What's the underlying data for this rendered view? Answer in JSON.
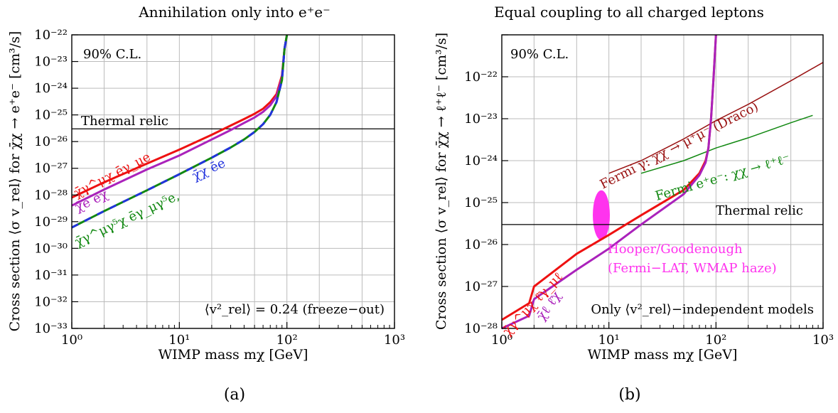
{
  "chart_data": [
    {
      "type": "line",
      "panel": "(a)",
      "title": "Annihilation only into e⁺e⁻",
      "xlabel": "WIMP mass mχ [GeV]",
      "ylabel": "Cross section ⟨σ v_rel⟩ for χ̄χ → e⁺e⁻ [cm³/s]",
      "x_scale": "log",
      "y_scale": "log",
      "xlim": [
        1,
        1000
      ],
      "ylim": [
        1e-33,
        1e-22
      ],
      "x_ticks": [
        "10⁰",
        "10¹",
        "10²",
        "10³"
      ],
      "y_ticks": [
        "10⁻³³",
        "10⁻³²",
        "10⁻³¹",
        "10⁻³⁰",
        "10⁻²⁹",
        "10⁻²⁸",
        "10⁻²⁷",
        "10⁻²⁶",
        "10⁻²⁵",
        "10⁻²⁴",
        "10⁻²³",
        "10⁻²²"
      ],
      "grid": true,
      "corner_label": "90% C.L.",
      "footnote": "⟨v²_rel⟩ = 0.24 (freeze−out)",
      "reference_line": {
        "label": "Thermal relic",
        "y": 3e-26
      },
      "series": [
        {
          "name": "χ̄γ^μχ ēγ_μe",
          "color": "#ee1111",
          "x": [
            1,
            2,
            5,
            10,
            20,
            30,
            40,
            50,
            60,
            70,
            80,
            90,
            95,
            100
          ],
          "y": [
            8e-29,
            3e-28,
            1.5e-27,
            5e-27,
            1.8e-26,
            4e-26,
            7e-26,
            1.1e-25,
            1.7e-25,
            3e-25,
            6e-25,
            3e-24,
            3e-23,
            1e-22
          ]
        },
        {
          "name": "χ̄e ēχ",
          "color": "#aa22bb",
          "x": [
            1,
            2,
            5,
            10,
            20,
            30,
            40,
            50,
            60,
            70,
            80,
            90,
            95,
            100
          ],
          "y": [
            4e-29,
            1.6e-28,
            9e-28,
            3e-27,
            1.2e-26,
            2.7e-26,
            5e-26,
            8e-26,
            1.3e-25,
            2.3e-25,
            5e-25,
            2.5e-24,
            3e-23,
            1e-22
          ]
        },
        {
          "name": "χ̄γ^μγ⁵χ ēγ_μγ⁵e",
          "color": "#118811",
          "x": [
            1,
            2,
            5,
            10,
            20,
            30,
            40,
            50,
            60,
            70,
            80,
            90,
            95,
            100
          ],
          "y": [
            6e-30,
            2.5e-29,
            1.5e-28,
            6e-28,
            2.5e-27,
            6e-27,
            1.2e-26,
            2.3e-26,
            4.5e-26,
            1e-25,
            3e-25,
            2e-24,
            3e-23,
            1e-22
          ]
        },
        {
          "name": "χ̄χ ēe",
          "color": "#2233dd",
          "x": [
            1,
            2,
            5,
            10,
            20,
            30,
            40,
            50,
            60,
            70,
            80,
            90,
            95,
            100
          ],
          "y": [
            6e-30,
            2.5e-29,
            1.5e-28,
            6e-28,
            2.5e-27,
            6e-27,
            1.2e-26,
            2.3e-26,
            4.5e-26,
            1e-25,
            3e-25,
            2e-24,
            3e-23,
            1e-22
          ]
        }
      ],
      "panel_label": "(a)"
    },
    {
      "type": "line",
      "panel": "(b)",
      "title": "Equal coupling to all charged leptons",
      "xlabel": "WIMP mass mχ [GeV]",
      "ylabel": "Cross section ⟨σ v_rel⟩ for χ̄χ → ℓ⁺ℓ⁻ [cm³/s]",
      "x_scale": "log",
      "y_scale": "log",
      "xlim": [
        1,
        1000
      ],
      "ylim": [
        1e-28,
        1e-21
      ],
      "x_ticks": [
        "10⁰",
        "10¹",
        "10²",
        "10³"
      ],
      "y_ticks": [
        "10⁻²⁸",
        "10⁻²⁷",
        "10⁻²⁶",
        "10⁻²⁵",
        "10⁻²⁴",
        "10⁻²³",
        "10⁻²²"
      ],
      "grid": true,
      "corner_label": "90% C.L.",
      "footnote": "Only ⟨v²_rel⟩−independent models",
      "reference_line": {
        "label": "Thermal relic",
        "y": 3e-26
      },
      "region": {
        "label_1": "Hooper/Goodenough",
        "label_2": "(Fermi−LAT, WMAP haze)",
        "color": "#ff33ee",
        "x_center": 8.5,
        "y_center": 5e-26
      },
      "series": [
        {
          "name": "Fermi γ: χχ → μ⁺μ⁻ (Draco)",
          "color": "#991111",
          "x": [
            10,
            20,
            50,
            100,
            200,
            500,
            1000
          ],
          "y": [
            5e-25,
            1e-24,
            3.3e-24,
            9e-24,
            2.2e-23,
            8e-23,
            2.2e-22
          ]
        },
        {
          "name": "Fermi e⁺e⁻: χχ → ℓ⁺ℓ⁻",
          "color": "#118811",
          "x": [
            20,
            50,
            100,
            200,
            500,
            800
          ],
          "y": [
            5e-25,
            1e-24,
            2e-24,
            3.5e-24,
            8e-24,
            1.2e-23
          ]
        },
        {
          "name": "χ̄γ^μχ ℓ̄γ_μℓ",
          "color": "#ee1111",
          "x": [
            1,
            1.8,
            2,
            5,
            10,
            20,
            50,
            70,
            80,
            85,
            90,
            95,
            100
          ],
          "y": [
            1.6e-28,
            4e-28,
            1e-27,
            6e-27,
            1.7e-26,
            5e-26,
            2e-25,
            5e-25,
            1e-24,
            2e-24,
            1e-23,
            1e-22,
            1e-21
          ]
        },
        {
          "name": "χ̄ℓ ℓ̄χ",
          "color": "#aa22bb",
          "x": [
            1,
            1.8,
            2,
            5,
            10,
            20,
            50,
            70,
            80,
            85,
            90,
            95,
            100
          ],
          "y": [
            9e-29,
            2e-28,
            5e-28,
            2.5e-27,
            8e-27,
            3e-26,
            1.6e-25,
            4.5e-25,
            9e-25,
            2e-24,
            1e-23,
            1e-22,
            1e-21
          ]
        }
      ],
      "panel_label": "(b)"
    }
  ],
  "labels": {
    "a_title_text": "Annihilation only into ",
    "a_title_math": "e⁺e⁻",
    "b_title": "Equal coupling to all charged leptons",
    "xlabel_text": "WIMP mass ",
    "xlabel_math": "mχ",
    "xlabel_unit": " [GeV]",
    "a_ylabel": "Cross section ⟨σ v",
    "b_ylabel": "Cross section ⟨σ v",
    "a_series_labels": [
      "χ̄γ^μχ ēγ_μe",
      "χ̄e ēχ",
      "χ̄γ^μγ⁵χ ēγ_μγ⁵e,",
      "χ̄χ ēe"
    ],
    "b_series_labels": [
      "χ̄γ^μχ ℓ̄γ_μℓ",
      "χ̄ℓ ℓ̄χ",
      "Fermi γ: χχ → μ⁺μ⁻ (Draco)",
      "Fermi e⁺e⁻: χχ → ℓ⁺ℓ⁻"
    ]
  }
}
